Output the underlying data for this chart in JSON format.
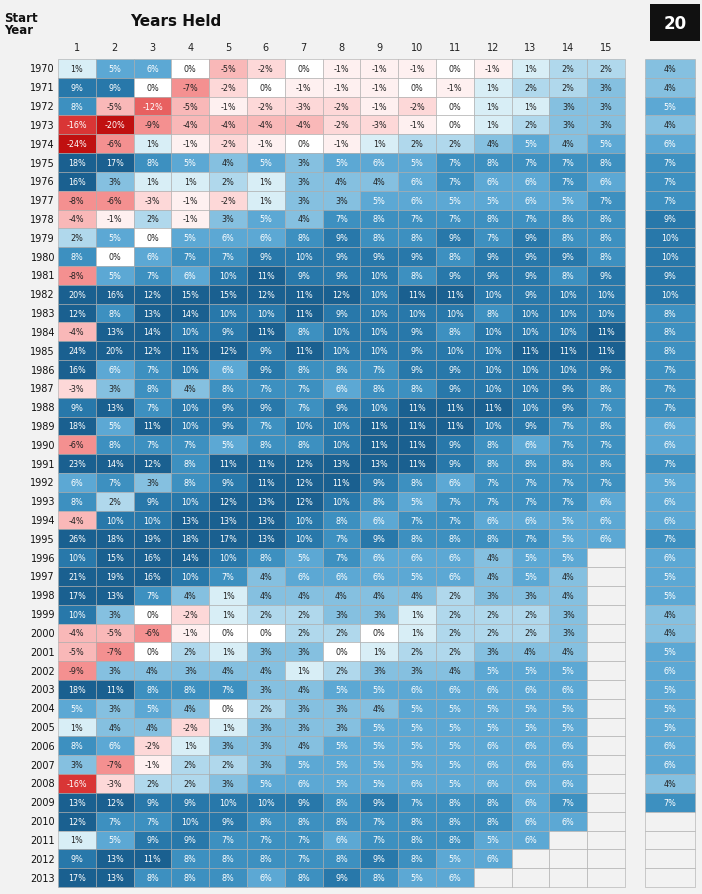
{
  "title": "Years Held",
  "ylabel": "Start\nYear",
  "col20_label": "20",
  "years": [
    1970,
    1971,
    1972,
    1973,
    1974,
    1975,
    1976,
    1977,
    1978,
    1979,
    1980,
    1981,
    1982,
    1983,
    1984,
    1985,
    1986,
    1987,
    1988,
    1989,
    1990,
    1991,
    1992,
    1993,
    1994,
    1995,
    1996,
    1997,
    1998,
    1999,
    2000,
    2001,
    2002,
    2003,
    2004,
    2005,
    2006,
    2007,
    2008,
    2009,
    2010,
    2011,
    2012,
    2013
  ],
  "cols": [
    1,
    2,
    3,
    4,
    5,
    6,
    7,
    8,
    9,
    10,
    11,
    12,
    13,
    14,
    15
  ],
  "col20": [
    4,
    4,
    5,
    4,
    6,
    7,
    7,
    7,
    9,
    10,
    10,
    9,
    10,
    8,
    8,
    8,
    7,
    7,
    7,
    6,
    6,
    7,
    5,
    6,
    6,
    7,
    6,
    5,
    5,
    4,
    4,
    5,
    6,
    5,
    5,
    5,
    6,
    6,
    4,
    7,
    null,
    null,
    null,
    null
  ],
  "data": [
    [
      1,
      5,
      6,
      0,
      -5,
      -2,
      0,
      -1,
      -1,
      -1,
      0,
      -1,
      1,
      2,
      2
    ],
    [
      9,
      9,
      0,
      -7,
      -2,
      0,
      -1,
      -1,
      -1,
      0,
      -1,
      1,
      2,
      2,
      3
    ],
    [
      8,
      -5,
      -12,
      -5,
      -1,
      -2,
      -3,
      -2,
      -1,
      -2,
      0,
      1,
      1,
      3,
      3
    ],
    [
      -16,
      -20,
      -9,
      -4,
      -4,
      -4,
      -4,
      -2,
      -3,
      -1,
      0,
      1,
      2,
      3,
      3
    ],
    [
      -24,
      -6,
      1,
      -1,
      -2,
      -1,
      0,
      -1,
      1,
      2,
      2,
      4,
      5,
      4,
      5
    ],
    [
      18,
      17,
      8,
      5,
      4,
      5,
      3,
      5,
      6,
      5,
      7,
      8,
      7,
      7,
      8
    ],
    [
      16,
      3,
      1,
      1,
      2,
      1,
      3,
      4,
      4,
      6,
      7,
      6,
      6,
      7,
      6
    ],
    [
      -8,
      -6,
      -3,
      -1,
      -2,
      1,
      3,
      3,
      5,
      6,
      5,
      5,
      6,
      5,
      7
    ],
    [
      -4,
      -1,
      2,
      -1,
      3,
      5,
      4,
      7,
      8,
      7,
      7,
      8,
      7,
      8,
      8
    ],
    [
      2,
      5,
      0,
      5,
      6,
      6,
      8,
      9,
      8,
      8,
      9,
      7,
      9,
      8,
      8
    ],
    [
      8,
      0,
      6,
      7,
      7,
      9,
      10,
      9,
      9,
      9,
      8,
      9,
      9,
      9,
      8
    ],
    [
      -8,
      5,
      7,
      6,
      10,
      11,
      9,
      9,
      10,
      8,
      9,
      9,
      9,
      8,
      9
    ],
    [
      20,
      16,
      12,
      15,
      15,
      12,
      11,
      12,
      10,
      11,
      11,
      10,
      9,
      10,
      10
    ],
    [
      12,
      8,
      13,
      14,
      10,
      10,
      11,
      9,
      10,
      10,
      10,
      8,
      10,
      10,
      10
    ],
    [
      -4,
      13,
      14,
      10,
      9,
      11,
      8,
      10,
      10,
      9,
      8,
      10,
      10,
      10,
      11
    ],
    [
      24,
      20,
      12,
      11,
      12,
      9,
      11,
      10,
      10,
      9,
      10,
      10,
      11,
      11,
      11
    ],
    [
      16,
      6,
      7,
      10,
      6,
      9,
      8,
      8,
      7,
      9,
      9,
      10,
      10,
      10,
      9
    ],
    [
      -3,
      3,
      8,
      4,
      8,
      7,
      7,
      6,
      8,
      8,
      9,
      10,
      10,
      9,
      8
    ],
    [
      9,
      13,
      7,
      10,
      9,
      9,
      7,
      9,
      10,
      11,
      11,
      11,
      10,
      9,
      7
    ],
    [
      18,
      5,
      11,
      10,
      9,
      7,
      10,
      10,
      11,
      11,
      11,
      10,
      9,
      7,
      8
    ],
    [
      -6,
      8,
      7,
      7,
      5,
      8,
      8,
      10,
      11,
      11,
      9,
      8,
      6,
      7,
      7
    ],
    [
      23,
      14,
      12,
      8,
      11,
      11,
      12,
      13,
      13,
      11,
      9,
      8,
      8,
      8,
      8
    ],
    [
      6,
      7,
      3,
      8,
      9,
      11,
      12,
      11,
      9,
      8,
      6,
      7,
      7,
      7,
      7
    ],
    [
      8,
      2,
      9,
      10,
      12,
      13,
      12,
      10,
      8,
      5,
      7,
      7,
      7,
      7,
      6
    ],
    [
      -4,
      10,
      10,
      13,
      13,
      13,
      10,
      8,
      6,
      7,
      7,
      6,
      6,
      5,
      6
    ],
    [
      26,
      18,
      19,
      18,
      17,
      13,
      10,
      7,
      9,
      8,
      8,
      8,
      7,
      5,
      6
    ],
    [
      10,
      15,
      16,
      14,
      10,
      8,
      5,
      7,
      6,
      6,
      6,
      4,
      5,
      5,
      null
    ],
    [
      21,
      19,
      16,
      10,
      7,
      4,
      6,
      6,
      6,
      5,
      6,
      4,
      5,
      4,
      null
    ],
    [
      17,
      13,
      7,
      4,
      1,
      4,
      4,
      4,
      4,
      4,
      2,
      3,
      3,
      4,
      null
    ],
    [
      10,
      3,
      0,
      -2,
      1,
      2,
      2,
      3,
      3,
      1,
      2,
      2,
      2,
      3,
      null
    ],
    [
      -4,
      -5,
      -6,
      -1,
      0,
      0,
      2,
      2,
      0,
      1,
      2,
      2,
      2,
      3,
      null
    ],
    [
      -5,
      -7,
      0,
      2,
      1,
      3,
      3,
      0,
      1,
      2,
      2,
      3,
      4,
      4,
      null
    ],
    [
      -9,
      3,
      4,
      3,
      4,
      4,
      1,
      2,
      3,
      3,
      4,
      5,
      5,
      5,
      null
    ],
    [
      18,
      11,
      8,
      8,
      7,
      3,
      4,
      5,
      5,
      6,
      6,
      6,
      6,
      6,
      null
    ],
    [
      5,
      3,
      5,
      4,
      0,
      2,
      3,
      3,
      4,
      5,
      5,
      5,
      5,
      5,
      null
    ],
    [
      1,
      4,
      4,
      -2,
      1,
      3,
      3,
      3,
      5,
      5,
      5,
      5,
      5,
      5,
      null
    ],
    [
      8,
      6,
      -2,
      1,
      3,
      3,
      4,
      5,
      5,
      5,
      5,
      6,
      6,
      6,
      null
    ],
    [
      3,
      -7,
      -1,
      2,
      2,
      3,
      5,
      5,
      5,
      5,
      5,
      6,
      6,
      6,
      null
    ],
    [
      -16,
      -3,
      2,
      2,
      3,
      5,
      6,
      5,
      5,
      6,
      5,
      6,
      6,
      6,
      null
    ],
    [
      13,
      12,
      9,
      9,
      10,
      10,
      9,
      8,
      9,
      7,
      8,
      8,
      6,
      7,
      null
    ],
    [
      12,
      7,
      7,
      10,
      9,
      8,
      8,
      8,
      7,
      8,
      8,
      8,
      6,
      6,
      null
    ],
    [
      1,
      5,
      9,
      9,
      7,
      7,
      7,
      6,
      7,
      8,
      8,
      5,
      6,
      null,
      null
    ],
    [
      9,
      13,
      11,
      8,
      8,
      8,
      7,
      8,
      9,
      8,
      5,
      6,
      null,
      null,
      null
    ],
    [
      17,
      13,
      8,
      8,
      8,
      6,
      8,
      9,
      8,
      5,
      6,
      null,
      null,
      null,
      null
    ]
  ]
}
